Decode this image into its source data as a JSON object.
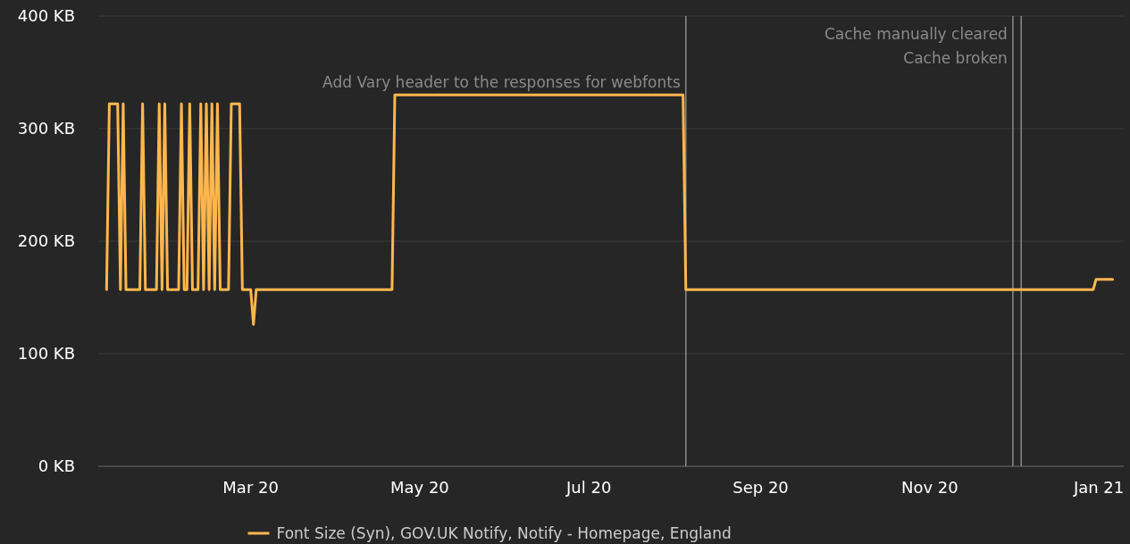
{
  "chart_data": {
    "type": "line",
    "xlabel": null,
    "x": [
      "2020-01-09",
      "2020-01-10",
      "2020-01-13",
      "2020-01-14",
      "2020-01-15",
      "2020-01-16",
      "2020-01-21",
      "2020-01-22",
      "2020-01-23",
      "2020-01-27",
      "2020-01-28",
      "2020-01-29",
      "2020-01-30",
      "2020-01-31",
      "2020-02-04",
      "2020-02-05",
      "2020-02-06",
      "2020-02-07",
      "2020-02-08",
      "2020-02-09",
      "2020-02-11",
      "2020-02-12",
      "2020-02-13",
      "2020-02-14",
      "2020-02-15",
      "2020-02-16",
      "2020-02-17",
      "2020-02-18",
      "2020-02-19",
      "2020-02-22",
      "2020-02-23",
      "2020-02-26",
      "2020-02-27",
      "2020-03-01",
      "2020-03-02",
      "2020-03-03",
      "2020-04-21",
      "2020-04-22",
      "2020-08-04",
      "2020-08-05",
      "2020-12-30",
      "2020-12-31",
      "2021-01-06"
    ],
    "series": [
      {
        "name": "Font Size (Syn), GOV.UK Notify, Notify - Homepage, England",
        "color": "#ffb74d",
        "values": [
          157,
          322,
          322,
          157,
          322,
          157,
          157,
          322,
          157,
          157,
          322,
          157,
          322,
          157,
          157,
          322,
          157,
          157,
          322,
          157,
          157,
          322,
          157,
          322,
          157,
          322,
          157,
          322,
          157,
          157,
          322,
          322,
          157,
          157,
          126,
          157,
          157,
          330,
          330,
          157,
          157,
          166,
          166
        ]
      }
    ],
    "xlim": [
      "2020-01-06",
      "2021-01-10"
    ],
    "xticks": [
      {
        "value": "2020-03-01",
        "label": "Mar 20"
      },
      {
        "value": "2020-05-01",
        "label": "May 20"
      },
      {
        "value": "2020-07-01",
        "label": "Jul 20"
      },
      {
        "value": "2020-09-01",
        "label": "Sep 20"
      },
      {
        "value": "2020-11-01",
        "label": "Nov 20"
      },
      {
        "value": "2021-01-01",
        "label": "Jan 21"
      }
    ],
    "ylim": [
      0,
      400
    ],
    "yticks": [
      {
        "value": 0,
        "label": "0 KB"
      },
      {
        "value": 100,
        "label": "100 KB"
      },
      {
        "value": 200,
        "label": "200 KB"
      },
      {
        "value": 300,
        "label": "300 KB"
      },
      {
        "value": 400,
        "label": "400 KB"
      }
    ],
    "grid": "y",
    "legend": "bottom",
    "marker": "none",
    "line_style": "solid",
    "ref_lines": [
      {
        "axis": "x",
        "value": "2020-12-01",
        "label": "Cache manually cleared",
        "color": "#8a8a8a"
      },
      {
        "axis": "x",
        "value": "2020-12-04",
        "label": "Cache broken",
        "color": "#8a8a8a"
      },
      {
        "axis": "x",
        "value": "2020-08-05",
        "label": "Add Vary header to the responses for webfonts",
        "color": "#8a8a8a"
      }
    ]
  }
}
